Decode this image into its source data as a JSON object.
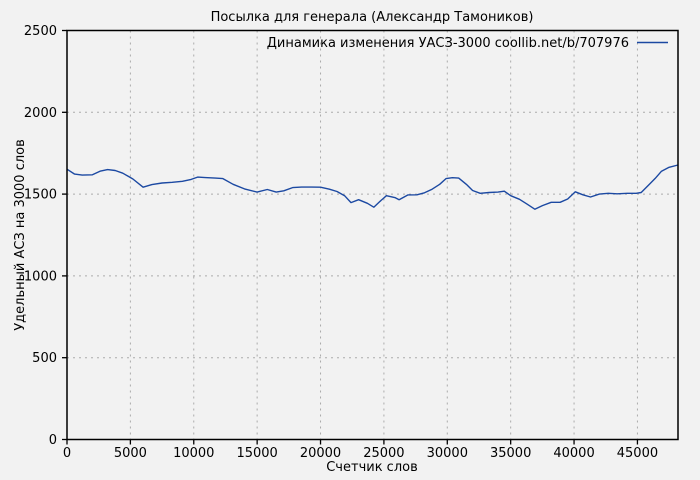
{
  "colors": {
    "background": "#f2f2f2",
    "series_line": "#1c49a2",
    "grid_line": "#ababab",
    "axis_and_text": "#000000"
  },
  "chart_data": {
    "type": "line",
    "title": "Посылка для генерала (Александр Тамоников)",
    "xlabel": "Счетчик слов",
    "ylabel": "Удельный АСЗ на 3000 слов",
    "xlim": [
      0,
      48200
    ],
    "ylim": [
      0,
      2500
    ],
    "xticks": [
      0,
      5000,
      10000,
      15000,
      20000,
      25000,
      30000,
      35000,
      40000,
      45000
    ],
    "yticks": [
      0,
      500,
      1000,
      1500,
      2000,
      2500
    ],
    "grid": true,
    "grid_style": "dashed",
    "legend_position": "top-right-inside",
    "series": [
      {
        "name": "Динамика изменения УАСЗ-3000 coollib.net/b/707976",
        "color": "#1c49a2",
        "points": [
          [
            0,
            1652
          ],
          [
            600,
            1622
          ],
          [
            1200,
            1616
          ],
          [
            2000,
            1618
          ],
          [
            2600,
            1640
          ],
          [
            3200,
            1650
          ],
          [
            3800,
            1644
          ],
          [
            4400,
            1628
          ],
          [
            5200,
            1592
          ],
          [
            6000,
            1542
          ],
          [
            6700,
            1558
          ],
          [
            7500,
            1568
          ],
          [
            8300,
            1572
          ],
          [
            9100,
            1578
          ],
          [
            9800,
            1590
          ],
          [
            10300,
            1604
          ],
          [
            10900,
            1601
          ],
          [
            11700,
            1598
          ],
          [
            12300,
            1595
          ],
          [
            13100,
            1560
          ],
          [
            14000,
            1532
          ],
          [
            15000,
            1512
          ],
          [
            15800,
            1528
          ],
          [
            16500,
            1512
          ],
          [
            17100,
            1520
          ],
          [
            17800,
            1540
          ],
          [
            18500,
            1543
          ],
          [
            19300,
            1543
          ],
          [
            20000,
            1542
          ],
          [
            20700,
            1530
          ],
          [
            21300,
            1516
          ],
          [
            21900,
            1490
          ],
          [
            22400,
            1448
          ],
          [
            23000,
            1466
          ],
          [
            23700,
            1444
          ],
          [
            24200,
            1420
          ],
          [
            24700,
            1456
          ],
          [
            25200,
            1490
          ],
          [
            25900,
            1478
          ],
          [
            26200,
            1466
          ],
          [
            26900,
            1495
          ],
          [
            27600,
            1496
          ],
          [
            28200,
            1508
          ],
          [
            28800,
            1530
          ],
          [
            29400,
            1560
          ],
          [
            29900,
            1595
          ],
          [
            30400,
            1600
          ],
          [
            30900,
            1598
          ],
          [
            31500,
            1560
          ],
          [
            32000,
            1522
          ],
          [
            32600,
            1505
          ],
          [
            33300,
            1510
          ],
          [
            34000,
            1512
          ],
          [
            34500,
            1518
          ],
          [
            35000,
            1490
          ],
          [
            35700,
            1468
          ],
          [
            36300,
            1438
          ],
          [
            36900,
            1408
          ],
          [
            37500,
            1430
          ],
          [
            38200,
            1450
          ],
          [
            38900,
            1450
          ],
          [
            39500,
            1470
          ],
          [
            40100,
            1514
          ],
          [
            40700,
            1496
          ],
          [
            41300,
            1482
          ],
          [
            42000,
            1500
          ],
          [
            42700,
            1505
          ],
          [
            43400,
            1502
          ],
          [
            44200,
            1505
          ],
          [
            44900,
            1505
          ],
          [
            45300,
            1510
          ],
          [
            45900,
            1556
          ],
          [
            46400,
            1596
          ],
          [
            46900,
            1640
          ],
          [
            47500,
            1664
          ],
          [
            48200,
            1678
          ]
        ]
      }
    ]
  }
}
